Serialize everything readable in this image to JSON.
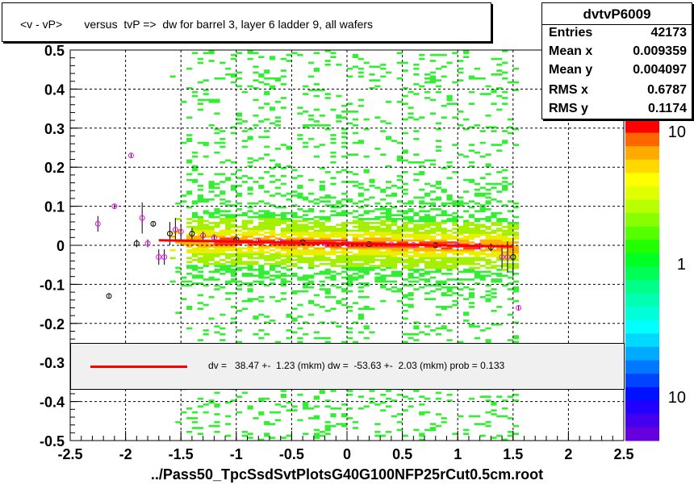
{
  "title": "<v - vP>       versus  tvP =>  dw for barrel 3, layer 6 ladder 9, all wafers",
  "stats": {
    "name": "dvtvP6009",
    "rows": [
      {
        "label": "Entries",
        "value": "42173"
      },
      {
        "label": "Mean x",
        "value": "0.009359"
      },
      {
        "label": "Mean y",
        "value": "0.004097"
      },
      {
        "label": "RMS x",
        "value": "0.6787"
      },
      {
        "label": "RMS y",
        "value": "0.1174"
      }
    ]
  },
  "fit_text": "dv =   38.47 +-  1.23 (mkm) dw =  -53.63 +-  2.03 (mkm) prob = 0.133",
  "xfile": "../Pass50_TpcSsdSvtPlotsG40G100NFP25rCut0.5cm.root",
  "colors": {
    "fit": "#ff0000",
    "profile_marker": "#ff00ff",
    "profile_marker2": "#000000"
  },
  "chart_data": {
    "type": "heatmap",
    "xlim": [
      -2.5,
      2.5
    ],
    "ylim": [
      -0.5,
      0.5
    ],
    "x_ticks": [
      "-2.5",
      "-2",
      "-1.5",
      "-1",
      "-0.5",
      "0",
      "0.5",
      "1",
      "1.5",
      "2",
      "2.5"
    ],
    "y_ticks": [
      "-0.5",
      "-0.4",
      "-0.3",
      "-0.2",
      "-0.1",
      "0",
      "0.1",
      "0.2",
      "0.3",
      "0.4",
      "0.5"
    ],
    "grid": true,
    "z_scale": "log",
    "z_labels": [
      "10",
      "1",
      "10"
    ],
    "fit": {
      "x": [
        -1.7,
        1.5
      ],
      "y": [
        0.013,
        -0.003
      ]
    },
    "profile": [
      {
        "x": -2.25,
        "y": 0.055,
        "err": 0.02
      },
      {
        "x": -2.15,
        "y": -0.13,
        "err": 0.005
      },
      {
        "x": -2.1,
        "y": 0.1,
        "err": 0.005
      },
      {
        "x": -1.95,
        "y": 0.23,
        "err": 0.005
      },
      {
        "x": -1.9,
        "y": 0.005,
        "err": 0.01
      },
      {
        "x": -1.85,
        "y": 0.07,
        "err": 0.04
      },
      {
        "x": -1.8,
        "y": 0.005,
        "err": 0.01
      },
      {
        "x": -1.75,
        "y": 0.055,
        "err": 0.005
      },
      {
        "x": -1.7,
        "y": -0.03,
        "err": 0.02
      },
      {
        "x": -1.65,
        "y": -0.03,
        "err": 0.02
      },
      {
        "x": -1.6,
        "y": 0.03,
        "err": 0.03
      },
      {
        "x": -1.55,
        "y": 0.04,
        "err": 0.03
      },
      {
        "x": -1.5,
        "y": 0.035,
        "err": 0.02
      },
      {
        "x": -1.4,
        "y": 0.03,
        "err": 0.015
      },
      {
        "x": -1.3,
        "y": 0.025,
        "err": 0.01
      },
      {
        "x": -1.2,
        "y": 0.02,
        "err": 0.008
      },
      {
        "x": -1.0,
        "y": 0.015,
        "err": 0.005
      },
      {
        "x": -0.8,
        "y": 0.012,
        "err": 0.004
      },
      {
        "x": -0.6,
        "y": 0.01,
        "err": 0.003
      },
      {
        "x": -0.4,
        "y": 0.008,
        "err": 0.003
      },
      {
        "x": -0.2,
        "y": 0.006,
        "err": 0.003
      },
      {
        "x": 0.0,
        "y": 0.004,
        "err": 0.003
      },
      {
        "x": 0.2,
        "y": 0.003,
        "err": 0.003
      },
      {
        "x": 0.4,
        "y": 0.002,
        "err": 0.003
      },
      {
        "x": 0.6,
        "y": 0.001,
        "err": 0.003
      },
      {
        "x": 0.8,
        "y": 0.0,
        "err": 0.004
      },
      {
        "x": 1.0,
        "y": 0.0,
        "err": 0.005
      },
      {
        "x": 1.2,
        "y": -0.002,
        "err": 0.008
      },
      {
        "x": 1.3,
        "y": -0.005,
        "err": 0.01
      },
      {
        "x": 1.4,
        "y": -0.03,
        "err": 0.03
      },
      {
        "x": 1.45,
        "y": -0.03,
        "err": 0.04
      },
      {
        "x": 1.5,
        "y": -0.03,
        "err": 0.05
      },
      {
        "x": 1.55,
        "y": -0.16,
        "err": 0.005
      }
    ]
  }
}
